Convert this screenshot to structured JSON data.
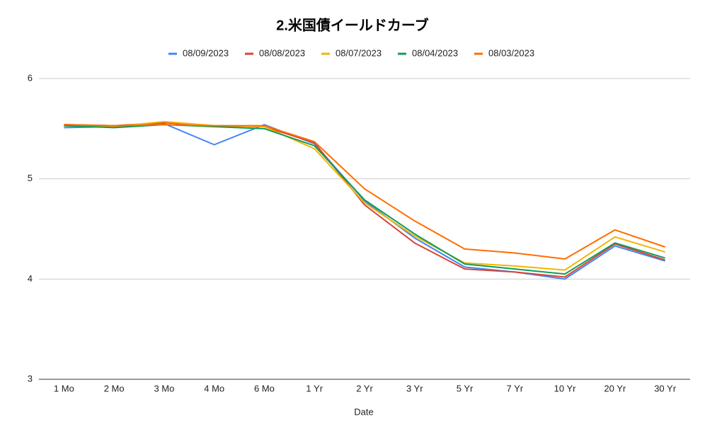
{
  "chart_data": {
    "type": "line",
    "title": "2.米国債イールドカーブ",
    "x_label": "Date",
    "categories": [
      "1 Mo",
      "2 Mo",
      "3 Mo",
      "4 Mo",
      "6 Mo",
      "1 Yr",
      "2 Yr",
      "3 Yr",
      "5 Yr",
      "7 Yr",
      "10 Yr",
      "20 Yr",
      "30 Yr"
    ],
    "series": [
      {
        "name": "08/09/2023",
        "color": "#4285f4",
        "values": [
          5.51,
          5.52,
          5.55,
          5.34,
          5.54,
          5.35,
          4.78,
          4.41,
          4.12,
          4.07,
          4.0,
          4.33,
          4.18
        ]
      },
      {
        "name": "08/08/2023",
        "color": "#db4437",
        "values": [
          5.54,
          5.53,
          5.56,
          5.53,
          5.52,
          5.36,
          4.74,
          4.36,
          4.1,
          4.07,
          4.02,
          4.35,
          4.19
        ]
      },
      {
        "name": "08/07/2023",
        "color": "#f4b400",
        "values": [
          5.53,
          5.52,
          5.57,
          5.53,
          5.52,
          5.3,
          4.76,
          4.43,
          4.16,
          4.13,
          4.09,
          4.42,
          4.27
        ]
      },
      {
        "name": "08/04/2023",
        "color": "#0f9d58",
        "values": [
          5.53,
          5.51,
          5.54,
          5.52,
          5.5,
          5.33,
          4.79,
          4.45,
          4.15,
          4.1,
          4.05,
          4.36,
          4.21
        ]
      },
      {
        "name": "08/03/2023",
        "color": "#ff6d01",
        "values": [
          5.54,
          5.53,
          5.54,
          5.53,
          5.53,
          5.37,
          4.9,
          4.58,
          4.3,
          4.26,
          4.2,
          4.49,
          4.32
        ]
      }
    ],
    "ylim": [
      3,
      6
    ],
    "yticks": [
      3,
      4,
      5,
      6
    ],
    "grid": true,
    "legend": "top"
  }
}
